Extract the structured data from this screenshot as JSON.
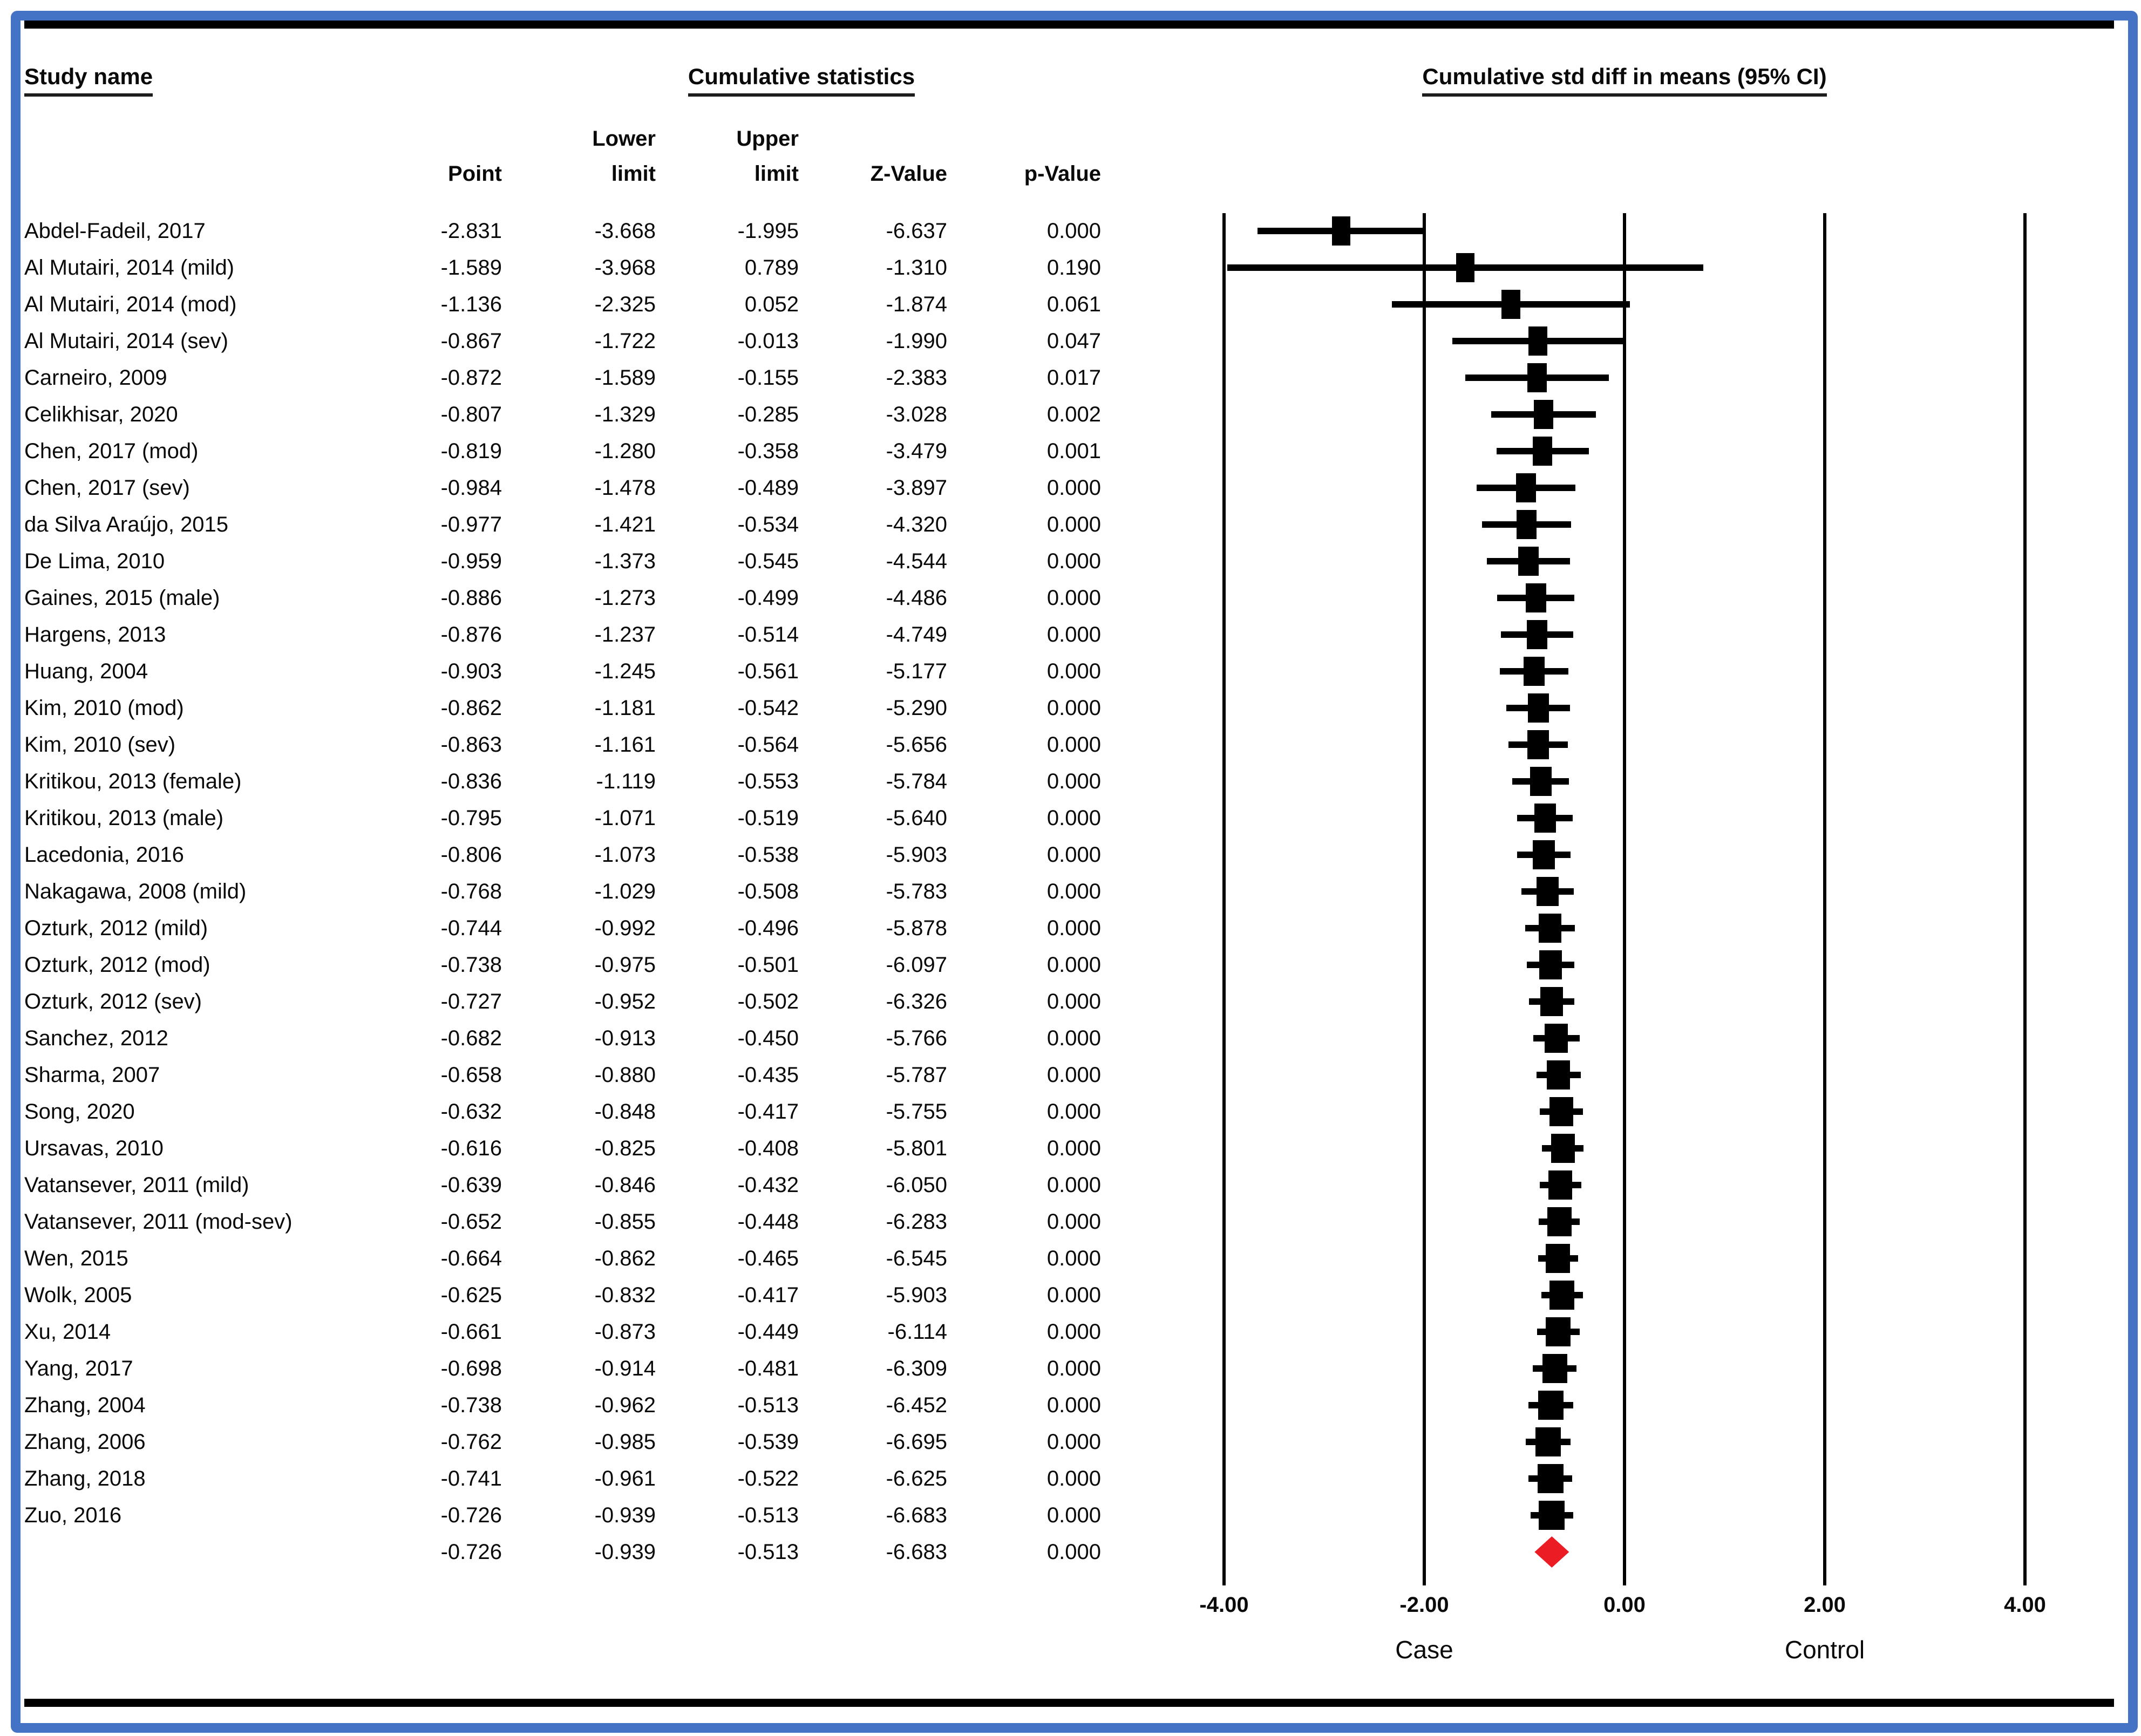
{
  "frame": {
    "border_color": "#4472C4",
    "rule_color": "#000000"
  },
  "table": {
    "study_name_header": "Study name",
    "cumulative_stats_header": "Cumulative statistics",
    "col_point": "Point",
    "col_lower_top": "Lower",
    "col_lower_bot": "limit",
    "col_upper_top": "Upper",
    "col_upper_bot": "limit",
    "col_z": "Z-Value",
    "col_p": "p-Value"
  },
  "plot": {
    "title": "Cumulative std diff in means (95% CI)",
    "axis_ticks": [
      "-4.00",
      "-2.00",
      "0.00",
      "2.00",
      "4.00"
    ],
    "axis_tick_values": [
      -4,
      -2,
      0,
      2,
      4
    ],
    "left_label": "Case",
    "right_label": "Control",
    "marker_color": "#000000",
    "summary_color": "#EC1C24"
  },
  "chart_data": {
    "type": "forest",
    "title": "Cumulative std diff in means (95% CI)",
    "xlabel_left": "Case",
    "xlabel_right": "Control",
    "xlim": [
      -4,
      4
    ],
    "x_ticks": [
      -4,
      -2,
      0,
      2,
      4
    ],
    "columns": [
      "Point",
      "Lower limit",
      "Upper limit",
      "Z-Value",
      "p-Value"
    ],
    "studies": [
      {
        "name": "Abdel-Fadeil, 2017",
        "point": "-2.831",
        "lower": "-3.668",
        "upper": "-1.995",
        "z": "-6.637",
        "p": "0.000"
      },
      {
        "name": "Al Mutairi, 2014 (mild)",
        "point": "-1.589",
        "lower": "-3.968",
        "upper": "0.789",
        "z": "-1.310",
        "p": "0.190"
      },
      {
        "name": "Al Mutairi, 2014 (mod)",
        "point": "-1.136",
        "lower": "-2.325",
        "upper": "0.052",
        "z": "-1.874",
        "p": "0.061"
      },
      {
        "name": "Al Mutairi, 2014 (sev)",
        "point": "-0.867",
        "lower": "-1.722",
        "upper": "-0.013",
        "z": "-1.990",
        "p": "0.047"
      },
      {
        "name": "Carneiro, 2009",
        "point": "-0.872",
        "lower": "-1.589",
        "upper": "-0.155",
        "z": "-2.383",
        "p": "0.017"
      },
      {
        "name": "Celikhisar, 2020",
        "point": "-0.807",
        "lower": "-1.329",
        "upper": "-0.285",
        "z": "-3.028",
        "p": "0.002"
      },
      {
        "name": "Chen, 2017 (mod)",
        "point": "-0.819",
        "lower": "-1.280",
        "upper": "-0.358",
        "z": "-3.479",
        "p": "0.001"
      },
      {
        "name": "Chen, 2017 (sev)",
        "point": "-0.984",
        "lower": "-1.478",
        "upper": "-0.489",
        "z": "-3.897",
        "p": "0.000"
      },
      {
        "name": "da Silva Araújo, 2015",
        "point": "-0.977",
        "lower": "-1.421",
        "upper": "-0.534",
        "z": "-4.320",
        "p": "0.000"
      },
      {
        "name": "De Lima, 2010",
        "point": "-0.959",
        "lower": "-1.373",
        "upper": "-0.545",
        "z": "-4.544",
        "p": "0.000"
      },
      {
        "name": "Gaines, 2015 (male)",
        "point": "-0.886",
        "lower": "-1.273",
        "upper": "-0.499",
        "z": "-4.486",
        "p": "0.000"
      },
      {
        "name": "Hargens, 2013",
        "point": "-0.876",
        "lower": "-1.237",
        "upper": "-0.514",
        "z": "-4.749",
        "p": "0.000"
      },
      {
        "name": "Huang, 2004",
        "point": "-0.903",
        "lower": "-1.245",
        "upper": "-0.561",
        "z": "-5.177",
        "p": "0.000"
      },
      {
        "name": "Kim, 2010 (mod)",
        "point": "-0.862",
        "lower": "-1.181",
        "upper": "-0.542",
        "z": "-5.290",
        "p": "0.000"
      },
      {
        "name": "Kim, 2010 (sev)",
        "point": "-0.863",
        "lower": "-1.161",
        "upper": "-0.564",
        "z": "-5.656",
        "p": "0.000"
      },
      {
        "name": "Kritikou, 2013 (female)",
        "point": "-0.836",
        "lower": "-1.119",
        "upper": "-0.553",
        "z": "-5.784",
        "p": "0.000"
      },
      {
        "name": "Kritikou, 2013 (male)",
        "point": "-0.795",
        "lower": "-1.071",
        "upper": "-0.519",
        "z": "-5.640",
        "p": "0.000"
      },
      {
        "name": "Lacedonia, 2016",
        "point": "-0.806",
        "lower": "-1.073",
        "upper": "-0.538",
        "z": "-5.903",
        "p": "0.000"
      },
      {
        "name": "Nakagawa, 2008 (mild)",
        "point": "-0.768",
        "lower": "-1.029",
        "upper": "-0.508",
        "z": "-5.783",
        "p": "0.000"
      },
      {
        "name": "Ozturk, 2012 (mild)",
        "point": "-0.744",
        "lower": "-0.992",
        "upper": "-0.496",
        "z": "-5.878",
        "p": "0.000"
      },
      {
        "name": "Ozturk, 2012 (mod)",
        "point": "-0.738",
        "lower": "-0.975",
        "upper": "-0.501",
        "z": "-6.097",
        "p": "0.000"
      },
      {
        "name": "Ozturk, 2012 (sev)",
        "point": "-0.727",
        "lower": "-0.952",
        "upper": "-0.502",
        "z": "-6.326",
        "p": "0.000"
      },
      {
        "name": "Sanchez, 2012",
        "point": "-0.682",
        "lower": "-0.913",
        "upper": "-0.450",
        "z": "-5.766",
        "p": "0.000"
      },
      {
        "name": "Sharma, 2007",
        "point": "-0.658",
        "lower": "-0.880",
        "upper": "-0.435",
        "z": "-5.787",
        "p": "0.000"
      },
      {
        "name": "Song, 2020",
        "point": "-0.632",
        "lower": "-0.848",
        "upper": "-0.417",
        "z": "-5.755",
        "p": "0.000"
      },
      {
        "name": "Ursavas, 2010",
        "point": "-0.616",
        "lower": "-0.825",
        "upper": "-0.408",
        "z": "-5.801",
        "p": "0.000"
      },
      {
        "name": "Vatansever, 2011 (mild)",
        "point": "-0.639",
        "lower": "-0.846",
        "upper": "-0.432",
        "z": "-6.050",
        "p": "0.000"
      },
      {
        "name": "Vatansever, 2011 (mod-sev)",
        "point": "-0.652",
        "lower": "-0.855",
        "upper": "-0.448",
        "z": "-6.283",
        "p": "0.000"
      },
      {
        "name": "Wen, 2015",
        "point": "-0.664",
        "lower": "-0.862",
        "upper": "-0.465",
        "z": "-6.545",
        "p": "0.000"
      },
      {
        "name": "Wolk, 2005",
        "point": "-0.625",
        "lower": "-0.832",
        "upper": "-0.417",
        "z": "-5.903",
        "p": "0.000"
      },
      {
        "name": "Xu, 2014",
        "point": "-0.661",
        "lower": "-0.873",
        "upper": "-0.449",
        "z": "-6.114",
        "p": "0.000"
      },
      {
        "name": "Yang, 2017",
        "point": "-0.698",
        "lower": "-0.914",
        "upper": "-0.481",
        "z": "-6.309",
        "p": "0.000"
      },
      {
        "name": "Zhang, 2004",
        "point": "-0.738",
        "lower": "-0.962",
        "upper": "-0.513",
        "z": "-6.452",
        "p": "0.000"
      },
      {
        "name": "Zhang, 2006",
        "point": "-0.762",
        "lower": "-0.985",
        "upper": "-0.539",
        "z": "-6.695",
        "p": "0.000"
      },
      {
        "name": "Zhang, 2018",
        "point": "-0.741",
        "lower": "-0.961",
        "upper": "-0.522",
        "z": "-6.625",
        "p": "0.000"
      },
      {
        "name": "Zuo, 2016",
        "point": "-0.726",
        "lower": "-0.939",
        "upper": "-0.513",
        "z": "-6.683",
        "p": "0.000"
      }
    ],
    "summary": {
      "name": "",
      "point": "-0.726",
      "lower": "-0.939",
      "upper": "-0.513",
      "z": "-6.683",
      "p": "0.000"
    }
  }
}
